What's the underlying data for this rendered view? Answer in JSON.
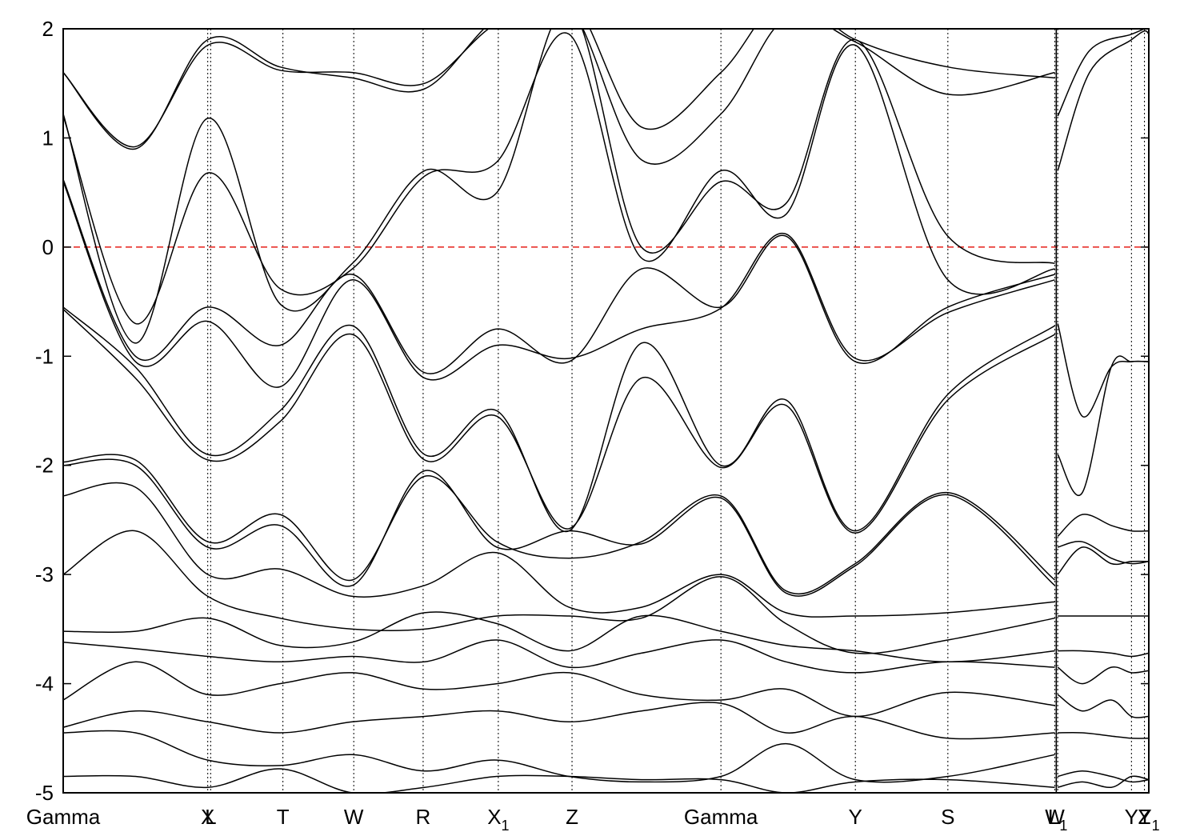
{
  "chart_data": {
    "type": "line",
    "title": "",
    "xlabel": "",
    "ylabel": "",
    "ylim": [
      -5,
      2
    ],
    "y_ticks": [
      "2",
      "1",
      "0",
      "-1",
      "-2",
      "-3",
      "-4",
      "-5"
    ],
    "grid": false,
    "legend": "none",
    "fermi_level": 0,
    "fermi_line_color": "#e8302a",
    "band_color": "#000000",
    "kpoints": [
      {
        "label": "Gamma",
        "sub": "",
        "x": 0.0
      },
      {
        "label": "X",
        "sub": "",
        "x": 1.0
      },
      {
        "label": "L",
        "sub": "",
        "x": 1.02
      },
      {
        "label": "T",
        "sub": "",
        "x": 1.52
      },
      {
        "label": "W",
        "sub": "",
        "x": 2.01
      },
      {
        "label": "R",
        "sub": "",
        "x": 2.49
      },
      {
        "label": "X",
        "sub": "1",
        "x": 3.01
      },
      {
        "label": "Z",
        "sub": "",
        "x": 3.52
      },
      {
        "label": "Gamma",
        "sub": "",
        "x": 4.55
      },
      {
        "label": "Y",
        "sub": "",
        "x": 5.48
      },
      {
        "label": "S",
        "sub": "",
        "x": 6.12
      },
      {
        "label": "W",
        "sub": "",
        "x": 6.86
      },
      {
        "label": "L",
        "sub": "1",
        "x": 6.88
      },
      {
        "label": "Y",
        "sub": "",
        "x": 7.39
      },
      {
        "label": "Z",
        "sub": "",
        "x": 7.48
      },
      {
        "label": "Y",
        "sub": "1",
        "x": 7.51
      }
    ],
    "xlim": [
      0,
      7.51
    ],
    "panel_break_x": 6.87,
    "series": [
      {
        "x": [
          0,
          0.5,
          1.0,
          1.5,
          2.0,
          2.5,
          3.0,
          3.5,
          4.0,
          4.55,
          5.0,
          5.48,
          6.12,
          6.86
        ],
        "y": [
          1.6,
          0.9,
          1.9,
          1.65,
          1.55,
          1.45,
          2.1,
          2.3,
          1.1,
          1.6,
          2.3,
          1.9,
          1.65,
          1.55
        ]
      },
      {
        "x": [
          0,
          0.5,
          1.0,
          1.5,
          2.0,
          2.5,
          3.0,
          3.5,
          4.0,
          4.55,
          5.0,
          5.48,
          6.12,
          6.86
        ],
        "y": [
          1.6,
          0.92,
          1.85,
          1.62,
          1.6,
          1.5,
          2.05,
          2.2,
          0.8,
          1.22,
          2.1,
          1.88,
          1.4,
          1.6
        ]
      },
      {
        "x": [
          0,
          0.5,
          1.0,
          1.5,
          2.0,
          2.5,
          3.0,
          3.5,
          4.0,
          4.55,
          5.0,
          5.48,
          6.12,
          6.86
        ],
        "y": [
          1.22,
          -0.88,
          1.18,
          -0.52,
          -0.15,
          0.7,
          0.5,
          2.2,
          0.0,
          0.6,
          0.4,
          1.9,
          0.1,
          -0.15
        ]
      },
      {
        "x": [
          0,
          0.5,
          1.0,
          1.5,
          2.0,
          2.5,
          3.0,
          3.5,
          4.0,
          4.55,
          5.0,
          5.48,
          6.12,
          6.86
        ],
        "y": [
          1.2,
          -0.7,
          0.68,
          -0.38,
          -0.2,
          0.65,
          0.78,
          1.95,
          -0.1,
          0.7,
          0.3,
          1.85,
          -0.3,
          -0.2
        ]
      },
      {
        "x": [
          0,
          0.5,
          1.0,
          1.5,
          2.0,
          2.5,
          3.0,
          3.5,
          4.0,
          4.55,
          5.0,
          5.48,
          6.12,
          6.86
        ],
        "y": [
          0.62,
          -1.0,
          -0.55,
          -0.9,
          -0.25,
          -1.15,
          -0.75,
          -1.05,
          -0.2,
          -0.55,
          0.1,
          -1.05,
          -0.55,
          -0.25
        ]
      },
      {
        "x": [
          0,
          0.5,
          1.0,
          1.5,
          2.0,
          2.5,
          3.0,
          3.5,
          4.0,
          4.55,
          5.0,
          5.48,
          6.12,
          6.86
        ],
        "y": [
          0.6,
          -1.05,
          -0.68,
          -1.28,
          -0.3,
          -1.2,
          -0.9,
          -1.02,
          -0.75,
          -0.56,
          0.12,
          -1.02,
          -0.6,
          -0.3
        ]
      },
      {
        "x": [
          0,
          0.5,
          1.0,
          1.5,
          2.0,
          2.5,
          3.0,
          3.5,
          4.0,
          4.55,
          5.0,
          5.48,
          6.12,
          6.86
        ],
        "y": [
          -0.55,
          -1.1,
          -1.9,
          -1.5,
          -0.72,
          -1.9,
          -1.5,
          -2.6,
          -0.88,
          -2.0,
          -1.4,
          -2.6,
          -1.35,
          -0.72
        ]
      },
      {
        "x": [
          0,
          0.5,
          1.0,
          1.5,
          2.0,
          2.5,
          3.0,
          3.5,
          4.0,
          4.55,
          5.0,
          5.48,
          6.12,
          6.86
        ],
        "y": [
          -0.57,
          -1.2,
          -1.95,
          -1.6,
          -0.8,
          -1.95,
          -1.55,
          -2.58,
          -1.2,
          -2.02,
          -1.45,
          -2.62,
          -1.4,
          -0.8
        ]
      },
      {
        "x": [
          0,
          0.5,
          1.0,
          1.5,
          2.0,
          2.5,
          3.0,
          3.5,
          4.0,
          4.55,
          5.0,
          5.48,
          6.12,
          6.86
        ],
        "y": [
          -1.97,
          -1.95,
          -2.7,
          -2.45,
          -3.05,
          -2.1,
          -2.7,
          -2.85,
          -2.7,
          -2.28,
          -3.15,
          -2.9,
          -2.25,
          -3.05
        ]
      },
      {
        "x": [
          0,
          0.5,
          1.0,
          1.5,
          2.0,
          2.5,
          3.0,
          3.5,
          4.0,
          4.55,
          5.0,
          5.48,
          6.12,
          6.86
        ],
        "y": [
          -2.0,
          -2.0,
          -2.75,
          -2.55,
          -3.1,
          -2.05,
          -2.75,
          -2.6,
          -2.72,
          -2.3,
          -3.17,
          -2.92,
          -2.27,
          -3.1
        ]
      },
      {
        "x": [
          0,
          0.5,
          1.0,
          1.5,
          2.0,
          2.5,
          3.0,
          3.5,
          4.0,
          4.55,
          5.0,
          5.48,
          6.12,
          6.86
        ],
        "y": [
          -2.28,
          -2.2,
          -3.0,
          -2.95,
          -3.2,
          -3.1,
          -2.8,
          -3.3,
          -3.3,
          -3.0,
          -3.35,
          -3.38,
          -3.35,
          -3.25
        ]
      },
      {
        "x": [
          0,
          0.5,
          1.0,
          1.5,
          2.0,
          2.5,
          3.0,
          3.5,
          4.0,
          4.55,
          5.0,
          5.48,
          6.12,
          6.86
        ],
        "y": [
          -3.0,
          -2.6,
          -3.2,
          -3.4,
          -3.5,
          -3.5,
          -3.38,
          -3.38,
          -3.4,
          -3.02,
          -3.45,
          -3.72,
          -3.6,
          -3.4
        ]
      },
      {
        "x": [
          0,
          0.5,
          1.0,
          1.5,
          2.0,
          2.5,
          3.0,
          3.5,
          4.0,
          4.55,
          5.0,
          5.48,
          6.12,
          6.86
        ],
        "y": [
          -3.52,
          -3.52,
          -3.4,
          -3.65,
          -3.62,
          -3.35,
          -3.45,
          -3.7,
          -3.38,
          -3.52,
          -3.65,
          -3.7,
          -3.8,
          -3.7
        ]
      },
      {
        "x": [
          0,
          0.5,
          1.0,
          1.5,
          2.0,
          2.5,
          3.0,
          3.5,
          4.0,
          4.55,
          5.0,
          5.48,
          6.12,
          6.86
        ],
        "y": [
          -3.62,
          -3.68,
          -3.75,
          -3.8,
          -3.75,
          -3.8,
          -3.6,
          -3.85,
          -3.72,
          -3.6,
          -3.8,
          -3.9,
          -3.8,
          -3.85
        ]
      },
      {
        "x": [
          0,
          0.5,
          1.0,
          1.5,
          2.0,
          2.5,
          3.0,
          3.5,
          4.0,
          4.55,
          5.0,
          5.48,
          6.12,
          6.86
        ],
        "y": [
          -4.15,
          -3.8,
          -4.1,
          -4.0,
          -3.9,
          -4.05,
          -4.0,
          -3.9,
          -4.1,
          -4.15,
          -4.05,
          -4.3,
          -4.08,
          -4.2
        ]
      },
      {
        "x": [
          0,
          0.5,
          1.0,
          1.5,
          2.0,
          2.5,
          3.0,
          3.5,
          4.0,
          4.55,
          5.0,
          5.48,
          6.12,
          6.86
        ],
        "y": [
          -4.4,
          -4.25,
          -4.35,
          -4.45,
          -4.35,
          -4.3,
          -4.25,
          -4.35,
          -4.25,
          -4.18,
          -4.45,
          -4.3,
          -4.5,
          -4.45
        ]
      },
      {
        "x": [
          0,
          0.5,
          1.0,
          1.5,
          2.0,
          2.5,
          3.0,
          3.5,
          4.0,
          4.55,
          5.0,
          5.48,
          6.12,
          6.86
        ],
        "y": [
          -4.45,
          -4.45,
          -4.7,
          -4.75,
          -4.65,
          -4.8,
          -4.7,
          -4.85,
          -4.9,
          -4.85,
          -4.55,
          -4.88,
          -4.85,
          -4.65
        ]
      },
      {
        "x": [
          0,
          0.5,
          1.0,
          1.5,
          2.0,
          2.5,
          3.0,
          3.5,
          4.0,
          4.55,
          5.0,
          5.48,
          6.12,
          6.86
        ],
        "y": [
          -4.85,
          -4.85,
          -4.95,
          -4.78,
          -5.0,
          -4.95,
          -4.85,
          -4.85,
          -4.88,
          -4.88,
          -5.0,
          -4.9,
          -4.88,
          -4.95
        ]
      },
      {
        "x": [
          6.88,
          7.1,
          7.39,
          7.48,
          7.51
        ],
        "y": [
          1.2,
          1.8,
          1.95,
          2.0,
          2.0
        ]
      },
      {
        "x": [
          6.88,
          7.1,
          7.39,
          7.48,
          7.51
        ],
        "y": [
          0.7,
          1.6,
          1.9,
          1.98,
          1.95
        ]
      },
      {
        "x": [
          6.88,
          7.05,
          7.25,
          7.39,
          7.51
        ],
        "y": [
          -0.7,
          -1.55,
          -1.1,
          -1.05,
          -1.05
        ]
      },
      {
        "x": [
          6.88,
          7.05,
          7.25,
          7.39,
          7.51
        ],
        "y": [
          -1.9,
          -2.25,
          -1.1,
          -1.05,
          -1.05
        ]
      },
      {
        "x": [
          6.88,
          7.05,
          7.25,
          7.39,
          7.51
        ],
        "y": [
          -2.65,
          -2.45,
          -2.55,
          -2.6,
          -2.6
        ]
      },
      {
        "x": [
          6.88,
          7.05,
          7.25,
          7.39,
          7.51
        ],
        "y": [
          -2.75,
          -2.7,
          -2.85,
          -2.9,
          -2.88
        ]
      },
      {
        "x": [
          6.88,
          7.05,
          7.25,
          7.39,
          7.51
        ],
        "y": [
          -3.0,
          -2.75,
          -2.9,
          -2.88,
          -2.88
        ]
      },
      {
        "x": [
          6.88,
          7.51
        ],
        "y": [
          -3.38,
          -3.38
        ]
      },
      {
        "x": [
          6.88,
          7.05,
          7.25,
          7.39,
          7.51
        ],
        "y": [
          -3.7,
          -3.7,
          -3.72,
          -3.75,
          -3.72
        ]
      },
      {
        "x": [
          6.88,
          7.05,
          7.25,
          7.39,
          7.51
        ],
        "y": [
          -3.85,
          -4.0,
          -3.85,
          -3.9,
          -3.88
        ]
      },
      {
        "x": [
          6.88,
          7.05,
          7.25,
          7.39,
          7.51
        ],
        "y": [
          -4.1,
          -4.25,
          -4.15,
          -4.3,
          -4.3
        ]
      },
      {
        "x": [
          6.88,
          7.05,
          7.25,
          7.39,
          7.51
        ],
        "y": [
          -4.45,
          -4.45,
          -4.48,
          -4.5,
          -4.5
        ]
      },
      {
        "x": [
          6.88,
          7.05,
          7.25,
          7.39,
          7.51
        ],
        "y": [
          -4.85,
          -4.8,
          -4.85,
          -4.9,
          -4.88
        ]
      },
      {
        "x": [
          6.88,
          7.05,
          7.25,
          7.39,
          7.51
        ],
        "y": [
          -4.95,
          -4.9,
          -4.95,
          -4.85,
          -4.88
        ]
      }
    ]
  }
}
